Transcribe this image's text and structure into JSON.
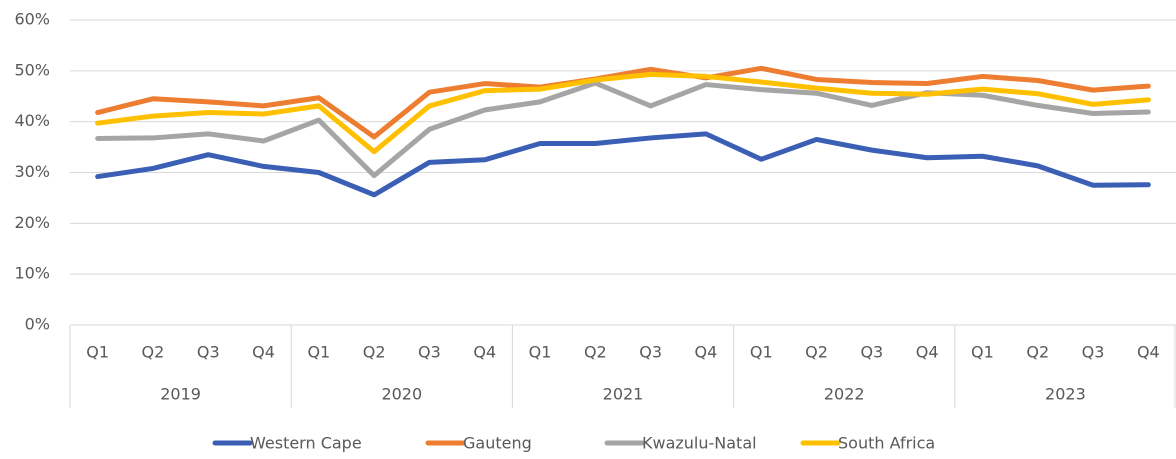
{
  "chart_data": {
    "type": "line",
    "categories": [
      "Q1",
      "Q2",
      "Q3",
      "Q4",
      "Q1",
      "Q2",
      "Q3",
      "Q4",
      "Q1",
      "Q2",
      "Q3",
      "Q4",
      "Q1",
      "Q2",
      "Q3",
      "Q4",
      "Q1",
      "Q2",
      "Q3",
      "Q4"
    ],
    "years": [
      "2019",
      "2020",
      "2021",
      "2022",
      "2023"
    ],
    "series": [
      {
        "name": "Western Cape",
        "color": "#3a5fb5",
        "values": [
          29.2,
          30.8,
          33.5,
          31.2,
          30.0,
          25.6,
          32.0,
          32.5,
          35.7,
          35.7,
          36.8,
          37.6,
          32.6,
          36.5,
          34.4,
          32.9,
          33.2,
          31.3,
          27.5,
          27.6
        ]
      },
      {
        "name": "Gauteng",
        "color": "#ed7d31",
        "values": [
          41.8,
          44.5,
          43.9,
          43.1,
          44.7,
          37.0,
          45.8,
          47.5,
          46.8,
          48.4,
          50.3,
          48.6,
          50.5,
          48.3,
          47.7,
          47.5,
          48.9,
          48.1,
          46.2,
          47.0
        ]
      },
      {
        "name": "Kwazulu-Natal",
        "color": "#a5a5a5",
        "values": [
          36.7,
          36.8,
          37.6,
          36.2,
          40.3,
          29.4,
          38.5,
          42.3,
          43.9,
          47.6,
          43.1,
          47.3,
          46.3,
          45.6,
          43.2,
          45.7,
          45.2,
          43.2,
          41.6,
          41.9
        ]
      },
      {
        "name": "South Africa",
        "color": "#ffc000",
        "values": [
          39.7,
          41.1,
          41.8,
          41.5,
          43.1,
          34.1,
          43.1,
          46.1,
          46.4,
          48.2,
          49.3,
          48.9,
          47.8,
          46.6,
          45.6,
          45.4,
          46.4,
          45.5,
          43.4,
          44.3
        ]
      }
    ],
    "ylim": [
      0,
      60
    ],
    "yticks": [
      {
        "value": 0,
        "label": "0%"
      },
      {
        "value": 10,
        "label": "10%"
      },
      {
        "value": 20,
        "label": "20%"
      },
      {
        "value": 30,
        "label": "30%"
      },
      {
        "value": 40,
        "label": "40%"
      },
      {
        "value": 50,
        "label": "50%"
      },
      {
        "value": 60,
        "label": "60%"
      }
    ],
    "grid": true,
    "legend": "bottom"
  }
}
